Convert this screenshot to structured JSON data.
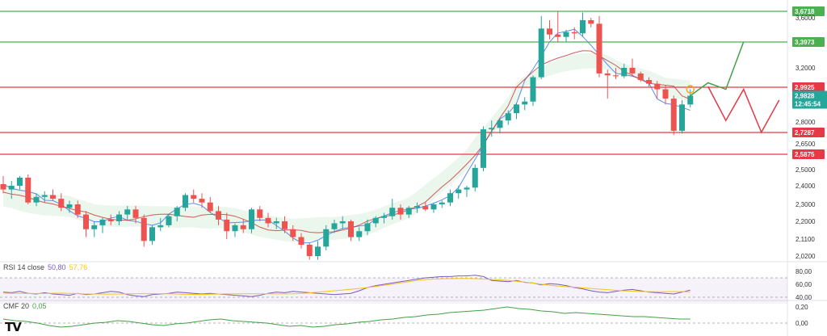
{
  "chart_data": {
    "type": "candlestick",
    "price_axis": {
      "ticks": [
        "3,6000",
        "3,2000",
        "2,8000",
        "2,6500",
        "2,5000",
        "2,4000",
        "2,3000",
        "2,2000",
        "2,1100",
        "2,0200"
      ],
      "tick_values": [
        3.6,
        3.2,
        2.8,
        2.65,
        2.5,
        2.4,
        2.3,
        2.2,
        2.11,
        2.02
      ]
    },
    "levels": [
      {
        "label": "3,6718",
        "value": 3.6718,
        "color": "#4caf50"
      },
      {
        "label": "3,3973",
        "value": 3.3973,
        "color": "#4caf50"
      },
      {
        "label": "2,9925",
        "value": 2.9925,
        "color": "#e53945"
      },
      {
        "label": "2,7287",
        "value": 2.7287,
        "color": "#e53945"
      },
      {
        "label": "2,5875",
        "value": 2.5875,
        "color": "#e53945"
      }
    ],
    "last_price": {
      "label": "2,9828",
      "countdown": "12:45:54",
      "color": "#26a69a"
    },
    "candles": [
      [
        2.41,
        2.46,
        2.36,
        2.38
      ],
      [
        2.38,
        2.43,
        2.33,
        2.4
      ],
      [
        2.4,
        2.46,
        2.38,
        2.45
      ],
      [
        2.45,
        2.47,
        2.3,
        2.31
      ],
      [
        2.31,
        2.36,
        2.29,
        2.34
      ],
      [
        2.34,
        2.37,
        2.31,
        2.35
      ],
      [
        2.35,
        2.38,
        2.32,
        2.33
      ],
      [
        2.33,
        2.36,
        2.26,
        2.28
      ],
      [
        2.28,
        2.32,
        2.25,
        2.3
      ],
      [
        2.3,
        2.32,
        2.22,
        2.24
      ],
      [
        2.24,
        2.26,
        2.12,
        2.16
      ],
      [
        2.16,
        2.2,
        2.12,
        2.18
      ],
      [
        2.18,
        2.22,
        2.14,
        2.21
      ],
      [
        2.21,
        2.24,
        2.18,
        2.2
      ],
      [
        2.2,
        2.26,
        2.18,
        2.24
      ],
      [
        2.24,
        2.29,
        2.21,
        2.27
      ],
      [
        2.27,
        2.29,
        2.19,
        2.22
      ],
      [
        2.22,
        2.24,
        2.07,
        2.1
      ],
      [
        2.1,
        2.18,
        2.08,
        2.17
      ],
      [
        2.17,
        2.22,
        2.15,
        2.18
      ],
      [
        2.18,
        2.24,
        2.17,
        2.23
      ],
      [
        2.23,
        2.29,
        2.2,
        2.28
      ],
      [
        2.28,
        2.36,
        2.26,
        2.35
      ],
      [
        2.35,
        2.38,
        2.31,
        2.33
      ],
      [
        2.33,
        2.36,
        2.28,
        2.31
      ],
      [
        2.31,
        2.34,
        2.25,
        2.26
      ],
      [
        2.26,
        2.29,
        2.18,
        2.21
      ],
      [
        2.21,
        2.25,
        2.11,
        2.15
      ],
      [
        2.15,
        2.19,
        2.12,
        2.18
      ],
      [
        2.18,
        2.21,
        2.14,
        2.16
      ],
      [
        2.16,
        2.28,
        2.14,
        2.27
      ],
      [
        2.27,
        2.29,
        2.2,
        2.22
      ],
      [
        2.22,
        2.25,
        2.17,
        2.19
      ],
      [
        2.19,
        2.22,
        2.16,
        2.2
      ],
      [
        2.2,
        2.23,
        2.14,
        2.16
      ],
      [
        2.16,
        2.18,
        2.1,
        2.12
      ],
      [
        2.12,
        2.14,
        2.06,
        2.08
      ],
      [
        2.08,
        2.09,
        2.0,
        2.02
      ],
      [
        2.02,
        2.1,
        2.0,
        2.07
      ],
      [
        2.07,
        2.18,
        2.05,
        2.16
      ],
      [
        2.16,
        2.21,
        2.14,
        2.19
      ],
      [
        2.19,
        2.23,
        2.16,
        2.2
      ],
      [
        2.2,
        2.21,
        2.1,
        2.12
      ],
      [
        2.12,
        2.17,
        2.1,
        2.15
      ],
      [
        2.15,
        2.21,
        2.13,
        2.19
      ],
      [
        2.19,
        2.23,
        2.17,
        2.22
      ],
      [
        2.22,
        2.25,
        2.19,
        2.23
      ],
      [
        2.23,
        2.33,
        2.21,
        2.28
      ],
      [
        2.28,
        2.3,
        2.21,
        2.24
      ],
      [
        2.24,
        2.29,
        2.22,
        2.28
      ],
      [
        2.28,
        2.31,
        2.25,
        2.29
      ],
      [
        2.29,
        2.31,
        2.26,
        2.27
      ],
      [
        2.27,
        2.31,
        2.25,
        2.3
      ],
      [
        2.3,
        2.32,
        2.28,
        2.31
      ],
      [
        2.31,
        2.38,
        2.29,
        2.36
      ],
      [
        2.36,
        2.4,
        2.33,
        2.38
      ],
      [
        2.38,
        2.4,
        2.34,
        2.39
      ],
      [
        2.39,
        2.53,
        2.37,
        2.51
      ],
      [
        2.51,
        2.77,
        2.49,
        2.75
      ],
      [
        2.75,
        2.81,
        2.7,
        2.76
      ],
      [
        2.76,
        2.82,
        2.72,
        2.81
      ],
      [
        2.81,
        2.88,
        2.78,
        2.86
      ],
      [
        2.86,
        2.93,
        2.82,
        2.92
      ],
      [
        2.92,
        2.97,
        2.88,
        2.94
      ],
      [
        2.94,
        3.12,
        2.91,
        3.1
      ],
      [
        3.1,
        3.62,
        3.08,
        3.51
      ],
      [
        3.51,
        3.58,
        3.42,
        3.46
      ],
      [
        3.46,
        3.67,
        3.4,
        3.44
      ],
      [
        3.44,
        3.5,
        3.4,
        3.48
      ],
      [
        3.48,
        3.52,
        3.42,
        3.47
      ],
      [
        3.47,
        3.66,
        3.44,
        3.58
      ],
      [
        3.58,
        3.6,
        3.52,
        3.55
      ],
      [
        3.55,
        3.62,
        3.1,
        3.14
      ],
      [
        3.14,
        3.18,
        2.96,
        3.12
      ],
      [
        3.12,
        3.2,
        3.08,
        3.11
      ],
      [
        3.11,
        3.23,
        3.09,
        3.2
      ],
      [
        3.2,
        3.27,
        3.11,
        3.14
      ],
      [
        3.14,
        3.16,
        3.05,
        3.07
      ],
      [
        3.07,
        3.1,
        3.0,
        3.03
      ],
      [
        3.03,
        3.06,
        2.96,
        2.99
      ],
      [
        2.99,
        3.01,
        2.92,
        2.96
      ],
      [
        2.96,
        2.98,
        2.71,
        2.74
      ],
      [
        2.74,
        2.95,
        2.72,
        2.92
      ],
      [
        2.92,
        2.99,
        2.9,
        2.98
      ]
    ],
    "forecast": {
      "green_path": [
        [
          0,
          2.98
        ],
        [
          1,
          3.04
        ],
        [
          2,
          2.99
        ],
        [
          3,
          3.4
        ]
      ],
      "red_path": [
        [
          1,
          3.0
        ],
        [
          2,
          2.81
        ],
        [
          3,
          2.99
        ],
        [
          4,
          2.73
        ],
        [
          5,
          2.95
        ]
      ]
    },
    "indicators": {
      "rsi": {
        "name": "RSI",
        "length": "14",
        "source": "close",
        "value": "50,80",
        "signal": "57,76",
        "axis_ticks": [
          "80,00",
          "60,00",
          "40,00"
        ],
        "values": [
          48,
          47,
          49,
          46,
          45,
          47,
          45,
          44,
          43,
          46,
          44,
          45,
          47,
          49,
          48,
          44,
          42,
          41,
          44,
          45,
          46,
          48,
          47,
          46,
          45,
          46,
          45,
          44,
          43,
          42,
          41,
          43,
          46,
          48,
          47,
          49,
          48,
          47,
          46,
          45,
          44,
          45,
          46,
          50,
          55,
          58,
          60,
          62,
          64,
          66,
          68,
          70,
          71,
          72,
          72,
          73,
          73,
          74,
          72,
          66,
          65,
          64,
          66,
          63,
          62,
          59,
          61,
          60,
          58,
          55,
          53,
          50,
          48,
          47,
          49,
          51,
          52,
          50,
          48,
          47,
          46,
          45,
          48,
          51
        ]
      },
      "cmf": {
        "name": "CMF",
        "length": "20",
        "value": "0,05",
        "axis_ticks": [
          "0,20",
          "0,00"
        ],
        "values": [
          0.05,
          0.03,
          0.02,
          0.0,
          -0.03,
          -0.05,
          -0.04,
          -0.02,
          0.0,
          0.01,
          0.03,
          0.02,
          0.0,
          -0.02,
          -0.03,
          -0.01,
          0.0,
          0.02,
          0.04,
          0.05,
          0.03,
          0.02,
          0.01,
          0.0,
          -0.02,
          -0.04,
          -0.03,
          -0.05,
          -0.04,
          -0.02,
          -0.01,
          0.01,
          0.02,
          0.04,
          0.05,
          0.07,
          0.08,
          0.1,
          0.11,
          0.13,
          0.14,
          0.15,
          0.16,
          0.18,
          0.2,
          0.18,
          0.17,
          0.15,
          0.14,
          0.12,
          0.13,
          0.12,
          0.11,
          0.1,
          0.09,
          0.08,
          0.08,
          0.07,
          0.06,
          0.05,
          0.05
        ]
      }
    }
  }
}
